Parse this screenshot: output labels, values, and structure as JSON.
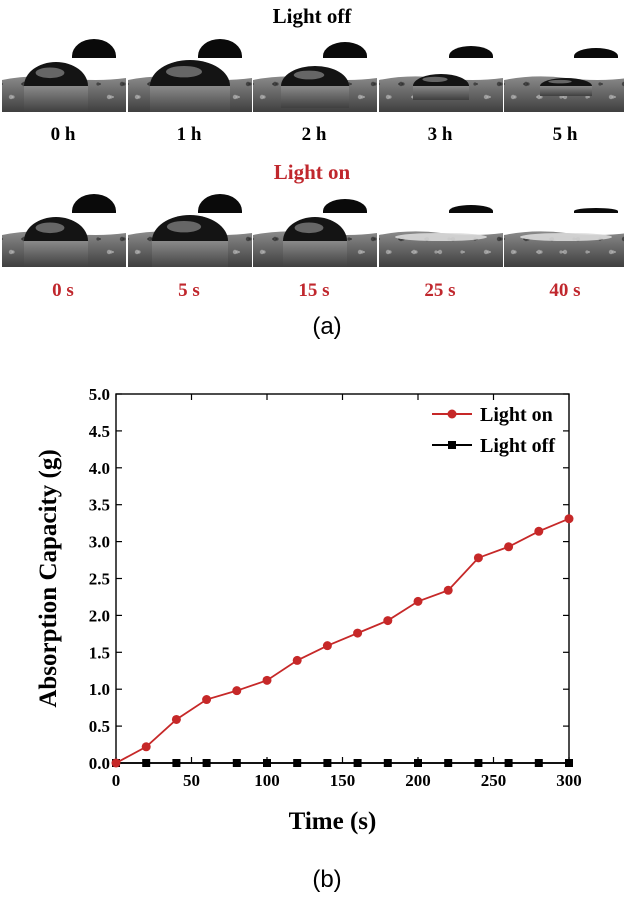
{
  "panel_a": {
    "light_off_title": "Light off",
    "light_on_title": "Light on",
    "light_off_times": [
      "0 h",
      "1 h",
      "2 h",
      "3 h",
      "5 h"
    ],
    "light_on_times": [
      "0 s",
      "5 s",
      "15 s",
      "25 s",
      "40 s"
    ],
    "label": "(a)",
    "colors": {
      "light_on_text": "#c0272d",
      "light_off_text": "#111111",
      "substrate": "#6b6b6b",
      "droplet": "#141414"
    }
  },
  "panel_b": {
    "label": "(b)"
  },
  "chart_data": {
    "type": "line",
    "xlabel": "Time (s)",
    "ylabel": "Absorption Capacity (g)",
    "xlim": [
      0,
      300
    ],
    "ylim": [
      0,
      5.0
    ],
    "xticks": [
      "0",
      "50",
      "100",
      "150",
      "200",
      "250",
      "300"
    ],
    "yticks": [
      "0.0",
      "0.5",
      "1.0",
      "1.5",
      "2.0",
      "2.5",
      "3.0",
      "3.5",
      "4.0",
      "4.5",
      "5.0"
    ],
    "grid": false,
    "legend_position": "top-right",
    "series": [
      {
        "name": "Light on",
        "color": "#c62828",
        "marker": "circle",
        "x": [
          0,
          20,
          40,
          60,
          80,
          100,
          120,
          140,
          160,
          180,
          200,
          220,
          240,
          260,
          280,
          300
        ],
        "y": [
          0.0,
          0.22,
          0.59,
          0.86,
          0.98,
          1.12,
          1.39,
          1.59,
          1.76,
          1.93,
          2.19,
          2.34,
          2.78,
          2.93,
          3.14,
          3.31
        ]
      },
      {
        "name": "Light off",
        "color": "#000000",
        "marker": "square",
        "x": [
          0,
          20,
          40,
          60,
          80,
          100,
          120,
          140,
          160,
          180,
          200,
          220,
          240,
          260,
          280,
          300
        ],
        "y": [
          0.0,
          0.0,
          0.0,
          0.0,
          0.0,
          0.0,
          0.0,
          0.0,
          0.0,
          0.0,
          0.0,
          0.0,
          0.0,
          0.0,
          0.0,
          0.0
        ]
      }
    ]
  }
}
